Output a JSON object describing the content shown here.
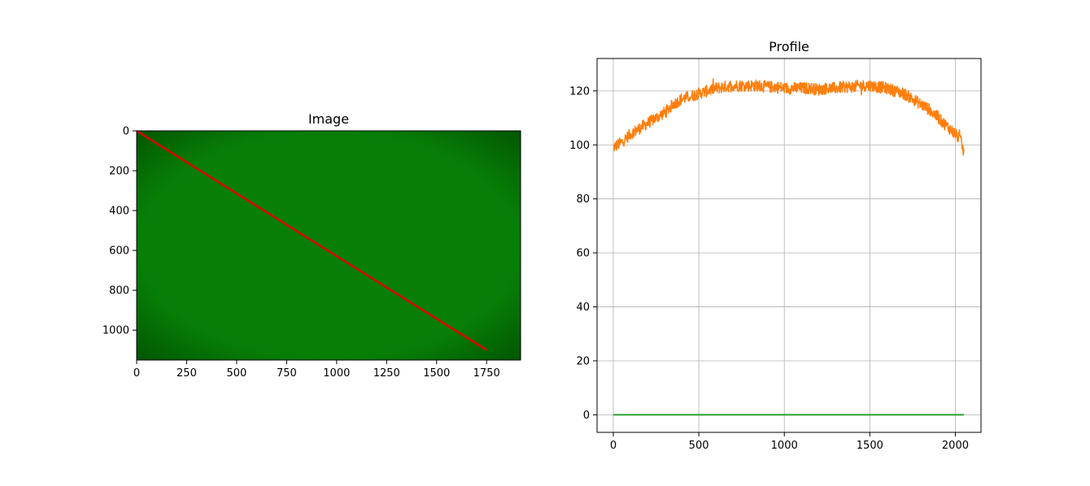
{
  "chart_data": [
    {
      "type": "image",
      "title": "Image",
      "xlabel": "",
      "ylabel": "",
      "x_range": [
        0,
        1920
      ],
      "y_range": [
        1150,
        0
      ],
      "x_ticks": [
        0,
        250,
        500,
        750,
        1000,
        1250,
        1500,
        1750
      ],
      "y_ticks": [
        0,
        200,
        400,
        600,
        800,
        1000
      ],
      "image_color": "#077f07",
      "image_edge_color": "#004d00",
      "overlay_line": {
        "color": "#e00000",
        "x": [
          0,
          1750
        ],
        "y": [
          0,
          1100
        ]
      }
    },
    {
      "type": "line",
      "title": "Profile",
      "xlabel": "",
      "ylabel": "",
      "xlim": [
        -95,
        2150
      ],
      "ylim": [
        -6.5,
        132
      ],
      "grid": true,
      "x_ticks": [
        0,
        500,
        1000,
        1500,
        2000
      ],
      "y_ticks": [
        0,
        20,
        40,
        60,
        80,
        100,
        120
      ],
      "series": [
        {
          "color": "#ff7f0e",
          "noise": 2.2,
          "x": [
            0,
            50,
            100,
            150,
            200,
            250,
            300,
            350,
            400,
            450,
            500,
            550,
            600,
            650,
            700,
            750,
            800,
            850,
            900,
            950,
            1000,
            1050,
            1100,
            1150,
            1200,
            1250,
            1300,
            1350,
            1400,
            1450,
            1500,
            1550,
            1600,
            1650,
            1700,
            1750,
            1800,
            1850,
            1900,
            1950,
            2000,
            2030,
            2050
          ],
          "y": [
            99,
            101,
            104,
            106,
            108,
            110,
            112,
            115,
            117,
            118,
            119,
            120,
            121,
            121.5,
            122,
            122,
            122,
            122,
            121.5,
            121.5,
            121,
            121,
            121,
            121,
            120.5,
            121,
            121,
            121.5,
            121.5,
            122,
            122,
            121.5,
            121,
            120,
            119,
            117,
            115,
            113,
            110,
            107,
            104,
            102,
            97
          ]
        },
        {
          "color": "#2ca02c",
          "noise": 0,
          "x": [
            0,
            2050
          ],
          "y": [
            0,
            0
          ]
        }
      ]
    }
  ]
}
